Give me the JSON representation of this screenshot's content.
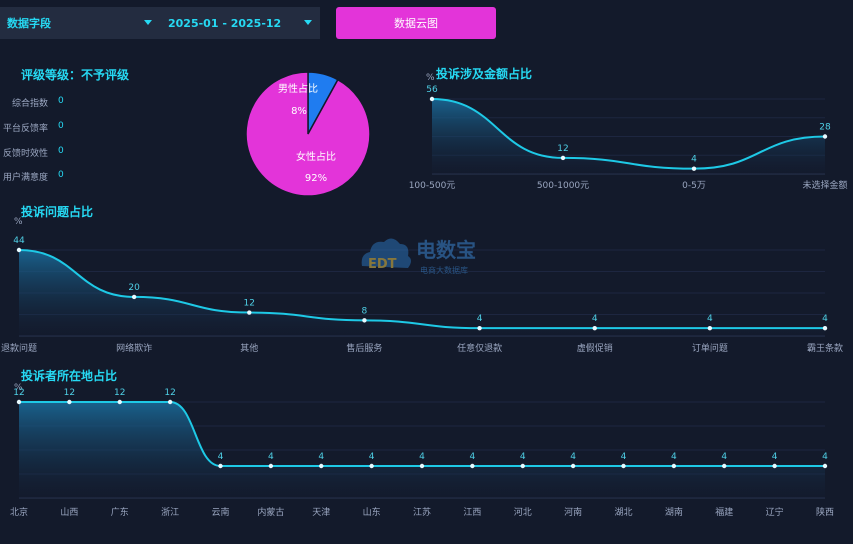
{
  "toolbar": {
    "field_select": "数据字段",
    "date_range": "2025-01 - 2025-12",
    "word_cloud_button": "数据云图"
  },
  "rating": {
    "title": "评级等级：不予评级",
    "metrics": [
      {
        "label": "综合指数",
        "value": "0"
      },
      {
        "label": "平台反馈率",
        "value": "0"
      },
      {
        "label": "反馈时效性",
        "value": "0"
      },
      {
        "label": "用户满意度",
        "value": "0"
      }
    ]
  },
  "watermark": {
    "main": "电数宝",
    "sub": "电商大数据库",
    "logo_text": "EDT"
  },
  "colors": {
    "line": "#1ec9e6",
    "male": "#1f7cf0",
    "female": "#e334d9",
    "title": "#26d9f3"
  },
  "chart_data": [
    {
      "type": "pie",
      "id": "gender",
      "slices": [
        {
          "name": "男性占比",
          "label": "8%",
          "value": 8
        },
        {
          "name": "女性占比",
          "label": "92%",
          "value": 92
        }
      ]
    },
    {
      "type": "area",
      "id": "amount",
      "title": "投诉涉及金额占比",
      "unit": "%",
      "categories": [
        "100-500元",
        "500-1000元",
        "0-5万",
        "未选择金额"
      ],
      "values": [
        56,
        12,
        4,
        28
      ],
      "ylim": [
        0,
        56
      ]
    },
    {
      "type": "area",
      "id": "issues",
      "title": "投诉问题占比",
      "unit": "%",
      "categories": [
        "退款问题",
        "网络欺诈",
        "其他",
        "售后服务",
        "任意仅退款",
        "虚假促销",
        "订单问题",
        "霸王条款"
      ],
      "values": [
        44,
        20,
        12,
        8,
        4,
        4,
        4,
        4
      ],
      "ylim": [
        0,
        44
      ]
    },
    {
      "type": "area",
      "id": "region",
      "title": "投诉者所在地占比",
      "unit": "%",
      "categories": [
        "北京",
        "山西",
        "广东",
        "浙江",
        "云南",
        "内蒙古",
        "天津",
        "山东",
        "江苏",
        "江西",
        "河北",
        "河南",
        "湖北",
        "湖南",
        "福建",
        "辽宁",
        "陕西"
      ],
      "values": [
        12,
        12,
        12,
        12,
        4,
        4,
        4,
        4,
        4,
        4,
        4,
        4,
        4,
        4,
        4,
        4,
        4
      ],
      "ylim": [
        0,
        12
      ]
    }
  ]
}
